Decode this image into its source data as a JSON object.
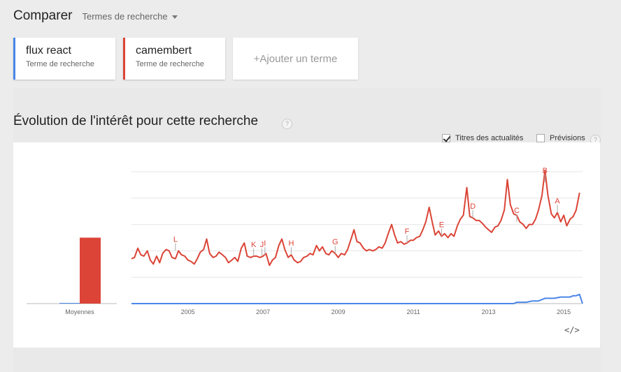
{
  "header": {
    "title": "Comparer",
    "subtitle": "Termes de recherche"
  },
  "terms": [
    {
      "name": "flux react",
      "type": "Terme de recherche",
      "color": "#4a86e8"
    },
    {
      "name": "camembert",
      "type": "Terme de recherche",
      "color": "#db4437"
    }
  ],
  "add_term": {
    "label": "+Ajouter un terme"
  },
  "section": {
    "title": "Évolution de l'intérêt pour cette recherche",
    "help": "?"
  },
  "options": {
    "news_label": "Titres des actualités",
    "news_checked": true,
    "forecast_label": "Prévisions",
    "forecast_checked": false,
    "help": "?"
  },
  "embed": {
    "label": "</>"
  },
  "chart_data": {
    "type": "line",
    "averages": {
      "label": "Moyennes",
      "values": {
        "flux react": 0,
        "camembert": 50
      }
    },
    "x_range": [
      2004.0,
      2016.0
    ],
    "y_range": [
      0,
      100
    ],
    "x_ticks": [
      "2005",
      "2007",
      "2009",
      "2011",
      "2013",
      "2015"
    ],
    "gridlines": true,
    "series": [
      {
        "name": "camembert",
        "color": "#db4437",
        "points": [
          [
            2004.0,
            34
          ],
          [
            2004.08,
            35
          ],
          [
            2004.17,
            42
          ],
          [
            2004.25,
            37
          ],
          [
            2004.33,
            36
          ],
          [
            2004.42,
            40
          ],
          [
            2004.5,
            33
          ],
          [
            2004.58,
            30
          ],
          [
            2004.67,
            36
          ],
          [
            2004.75,
            31
          ],
          [
            2004.83,
            38
          ],
          [
            2004.92,
            41
          ],
          [
            2005.0,
            40
          ],
          [
            2005.08,
            35
          ],
          [
            2005.17,
            34
          ],
          [
            2005.25,
            40
          ],
          [
            2005.33,
            37
          ],
          [
            2005.42,
            36
          ],
          [
            2005.5,
            33
          ],
          [
            2005.58,
            32
          ],
          [
            2005.67,
            30
          ],
          [
            2005.75,
            34
          ],
          [
            2005.83,
            39
          ],
          [
            2005.92,
            41
          ],
          [
            2006.0,
            49
          ],
          [
            2006.08,
            38
          ],
          [
            2006.17,
            35
          ],
          [
            2006.25,
            36
          ],
          [
            2006.33,
            39
          ],
          [
            2006.42,
            37
          ],
          [
            2006.5,
            35
          ],
          [
            2006.58,
            31
          ],
          [
            2006.67,
            33
          ],
          [
            2006.75,
            35
          ],
          [
            2006.83,
            32
          ],
          [
            2006.92,
            42
          ],
          [
            2007.0,
            46
          ],
          [
            2007.08,
            36
          ],
          [
            2007.17,
            35
          ],
          [
            2007.25,
            36
          ],
          [
            2007.33,
            36
          ],
          [
            2007.42,
            35
          ],
          [
            2007.5,
            36
          ],
          [
            2007.58,
            38
          ],
          [
            2007.67,
            29
          ],
          [
            2007.75,
            33
          ],
          [
            2007.83,
            35
          ],
          [
            2007.92,
            44
          ],
          [
            2008.0,
            49
          ],
          [
            2008.08,
            41
          ],
          [
            2008.17,
            35
          ],
          [
            2008.25,
            37
          ],
          [
            2008.33,
            33
          ],
          [
            2008.42,
            31
          ],
          [
            2008.5,
            32
          ],
          [
            2008.58,
            35
          ],
          [
            2008.67,
            36
          ],
          [
            2008.75,
            38
          ],
          [
            2008.83,
            37
          ],
          [
            2008.92,
            44
          ],
          [
            2009.0,
            40
          ],
          [
            2009.08,
            43
          ],
          [
            2009.17,
            38
          ],
          [
            2009.25,
            37
          ],
          [
            2009.33,
            40
          ],
          [
            2009.42,
            38
          ],
          [
            2009.5,
            35
          ],
          [
            2009.58,
            38
          ],
          [
            2009.67,
            37
          ],
          [
            2009.75,
            41
          ],
          [
            2009.83,
            48
          ],
          [
            2009.92,
            56
          ],
          [
            2010.0,
            47
          ],
          [
            2010.08,
            46
          ],
          [
            2010.17,
            42
          ],
          [
            2010.25,
            40
          ],
          [
            2010.33,
            41
          ],
          [
            2010.42,
            40
          ],
          [
            2010.5,
            41
          ],
          [
            2010.58,
            43
          ],
          [
            2010.67,
            42
          ],
          [
            2010.75,
            46
          ],
          [
            2010.83,
            53
          ],
          [
            2010.92,
            60
          ],
          [
            2011.0,
            52
          ],
          [
            2011.08,
            46
          ],
          [
            2011.17,
            47
          ],
          [
            2011.25,
            45
          ],
          [
            2011.33,
            46
          ],
          [
            2011.42,
            48
          ],
          [
            2011.5,
            48
          ],
          [
            2011.58,
            50
          ],
          [
            2011.67,
            51
          ],
          [
            2011.75,
            56
          ],
          [
            2011.83,
            62
          ],
          [
            2011.92,
            73
          ],
          [
            2012.0,
            62
          ],
          [
            2012.08,
            52
          ],
          [
            2012.17,
            55
          ],
          [
            2012.25,
            51
          ],
          [
            2012.33,
            53
          ],
          [
            2012.42,
            50
          ],
          [
            2012.5,
            53
          ],
          [
            2012.58,
            51
          ],
          [
            2012.67,
            59
          ],
          [
            2012.75,
            64
          ],
          [
            2012.83,
            67
          ],
          [
            2012.92,
            88
          ],
          [
            2013.0,
            66
          ],
          [
            2013.08,
            65
          ],
          [
            2013.17,
            63
          ],
          [
            2013.25,
            63
          ],
          [
            2013.33,
            61
          ],
          [
            2013.42,
            58
          ],
          [
            2013.5,
            56
          ],
          [
            2013.58,
            54
          ],
          [
            2013.67,
            58
          ],
          [
            2013.75,
            59
          ],
          [
            2013.83,
            63
          ],
          [
            2013.92,
            71
          ],
          [
            2014.0,
            94
          ],
          [
            2014.08,
            75
          ],
          [
            2014.17,
            68
          ],
          [
            2014.25,
            67
          ],
          [
            2014.33,
            62
          ],
          [
            2014.42,
            60
          ],
          [
            2014.5,
            57
          ],
          [
            2014.58,
            60
          ],
          [
            2014.67,
            60
          ],
          [
            2014.75,
            64
          ],
          [
            2014.83,
            71
          ],
          [
            2014.92,
            82
          ],
          [
            2015.0,
            101
          ],
          [
            2015.08,
            82
          ],
          [
            2015.17,
            68
          ],
          [
            2015.25,
            65
          ],
          [
            2015.33,
            69
          ],
          [
            2015.42,
            62
          ],
          [
            2015.5,
            67
          ],
          [
            2015.58,
            59
          ],
          [
            2015.67,
            64
          ],
          [
            2015.75,
            66
          ],
          [
            2015.83,
            71
          ],
          [
            2015.92,
            84
          ]
        ]
      },
      {
        "name": "flux react",
        "color": "#4a86e8",
        "points": [
          [
            2004.0,
            0
          ],
          [
            2014.17,
            0
          ],
          [
            2014.25,
            1
          ],
          [
            2014.5,
            1
          ],
          [
            2014.67,
            2
          ],
          [
            2014.83,
            2
          ],
          [
            2015.0,
            4
          ],
          [
            2015.08,
            4
          ],
          [
            2015.25,
            4
          ],
          [
            2015.42,
            5
          ],
          [
            2015.5,
            5
          ],
          [
            2015.67,
            5
          ],
          [
            2015.75,
            6
          ],
          [
            2015.83,
            6
          ],
          [
            2015.92,
            7
          ],
          [
            2016.0,
            0
          ]
        ]
      }
    ],
    "annotations": [
      {
        "label": "L",
        "x": 2005.17,
        "y": 40
      },
      {
        "label": "K",
        "x": 2007.25,
        "y": 36
      },
      {
        "label": "J",
        "x": 2007.47,
        "y": 36
      },
      {
        "label": "I",
        "x": 2007.55,
        "y": 37
      },
      {
        "label": "H",
        "x": 2008.25,
        "y": 37
      },
      {
        "label": "G",
        "x": 2009.42,
        "y": 38
      },
      {
        "label": "F",
        "x": 2011.33,
        "y": 46
      },
      {
        "label": "E",
        "x": 2012.25,
        "y": 51
      },
      {
        "label": "D",
        "x": 2013.08,
        "y": 65
      },
      {
        "label": "C",
        "x": 2014.25,
        "y": 62
      },
      {
        "label": "B",
        "x": 2015.0,
        "y": 92
      },
      {
        "label": "A",
        "x": 2015.33,
        "y": 69
      }
    ]
  }
}
